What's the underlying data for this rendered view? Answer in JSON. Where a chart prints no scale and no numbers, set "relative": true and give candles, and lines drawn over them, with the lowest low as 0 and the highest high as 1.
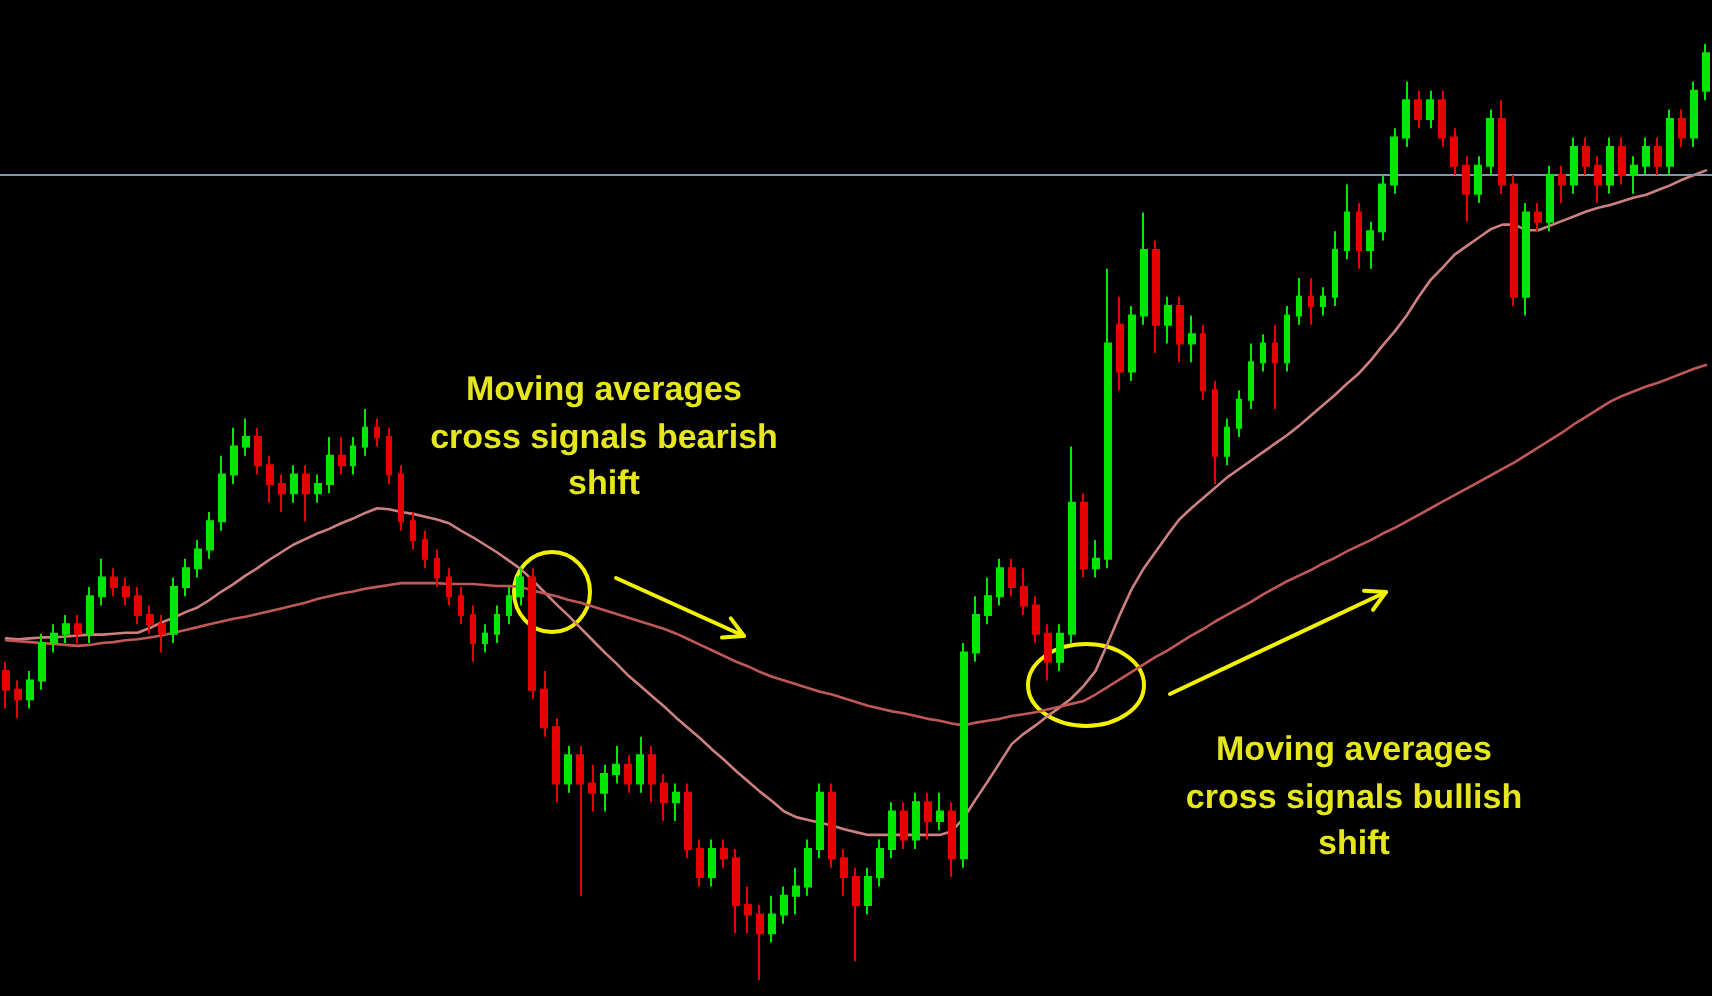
{
  "chart_data": {
    "type": "candlestick",
    "relative": true,
    "categories": [
      null,
      null,
      null,
      null,
      null,
      null,
      null,
      null,
      null,
      null,
      null,
      null,
      null,
      null,
      null,
      null,
      null,
      null,
      null,
      null,
      null,
      null,
      null,
      null,
      null,
      null,
      null,
      null,
      null,
      null,
      null,
      null,
      null,
      null,
      null,
      null,
      null,
      null,
      null,
      null,
      null,
      null,
      null,
      null,
      null,
      null,
      null,
      null,
      null,
      null,
      null,
      null,
      null,
      null,
      null,
      null,
      null,
      null,
      null,
      null,
      null,
      null,
      null,
      null,
      null,
      null,
      null,
      null,
      null,
      null,
      null,
      null,
      null,
      null,
      null,
      null,
      null,
      null,
      null,
      null,
      null,
      null,
      null,
      null,
      null,
      null,
      null,
      null,
      null,
      null,
      null,
      null,
      null,
      null,
      null,
      null,
      null,
      null,
      null,
      null,
      null,
      null,
      null,
      null,
      null,
      null,
      null,
      null,
      null,
      null,
      null,
      null,
      null,
      null,
      null,
      null,
      null,
      null,
      null,
      null,
      null,
      null,
      null,
      null,
      null,
      null,
      null,
      null,
      null,
      null,
      null,
      null,
      null,
      null,
      null,
      null,
      null,
      null,
      null,
      null,
      null,
      null,
      null
    ],
    "ohlc": [
      [
        0.33,
        0.34,
        0.29,
        0.31
      ],
      [
        0.31,
        0.32,
        0.28,
        0.3
      ],
      [
        0.3,
        0.33,
        0.29,
        0.32
      ],
      [
        0.32,
        0.37,
        0.31,
        0.36
      ],
      [
        0.36,
        0.38,
        0.35,
        0.37
      ],
      [
        0.37,
        0.39,
        0.36,
        0.38
      ],
      [
        0.38,
        0.39,
        0.36,
        0.37
      ],
      [
        0.37,
        0.42,
        0.36,
        0.41
      ],
      [
        0.41,
        0.45,
        0.4,
        0.43
      ],
      [
        0.43,
        0.44,
        0.41,
        0.42
      ],
      [
        0.42,
        0.43,
        0.4,
        0.41
      ],
      [
        0.41,
        0.42,
        0.38,
        0.39
      ],
      [
        0.39,
        0.4,
        0.37,
        0.38
      ],
      [
        0.38,
        0.39,
        0.35,
        0.37
      ],
      [
        0.37,
        0.43,
        0.36,
        0.42
      ],
      [
        0.42,
        0.45,
        0.41,
        0.44
      ],
      [
        0.44,
        0.47,
        0.43,
        0.46
      ],
      [
        0.46,
        0.5,
        0.45,
        0.49
      ],
      [
        0.49,
        0.56,
        0.48,
        0.54
      ],
      [
        0.54,
        0.59,
        0.53,
        0.57
      ],
      [
        0.57,
        0.6,
        0.56,
        0.58
      ],
      [
        0.58,
        0.59,
        0.54,
        0.55
      ],
      [
        0.55,
        0.56,
        0.51,
        0.53
      ],
      [
        0.53,
        0.54,
        0.5,
        0.52
      ],
      [
        0.52,
        0.55,
        0.51,
        0.54
      ],
      [
        0.54,
        0.55,
        0.49,
        0.52
      ],
      [
        0.52,
        0.54,
        0.51,
        0.53
      ],
      [
        0.53,
        0.58,
        0.52,
        0.56
      ],
      [
        0.56,
        0.58,
        0.54,
        0.55
      ],
      [
        0.55,
        0.58,
        0.54,
        0.57
      ],
      [
        0.57,
        0.61,
        0.56,
        0.59
      ],
      [
        0.59,
        0.6,
        0.57,
        0.58
      ],
      [
        0.58,
        0.59,
        0.53,
        0.54
      ],
      [
        0.54,
        0.55,
        0.48,
        0.49
      ],
      [
        0.49,
        0.5,
        0.46,
        0.47
      ],
      [
        0.47,
        0.48,
        0.44,
        0.45
      ],
      [
        0.45,
        0.46,
        0.42,
        0.43
      ],
      [
        0.43,
        0.44,
        0.4,
        0.41
      ],
      [
        0.41,
        0.42,
        0.38,
        0.39
      ],
      [
        0.39,
        0.4,
        0.34,
        0.36
      ],
      [
        0.36,
        0.38,
        0.35,
        0.37
      ],
      [
        0.37,
        0.4,
        0.36,
        0.39
      ],
      [
        0.39,
        0.42,
        0.38,
        0.41
      ],
      [
        0.41,
        0.44,
        0.4,
        0.43
      ],
      [
        0.43,
        0.44,
        0.3,
        0.31
      ],
      [
        0.31,
        0.33,
        0.26,
        0.27
      ],
      [
        0.27,
        0.28,
        0.19,
        0.21
      ],
      [
        0.21,
        0.25,
        0.2,
        0.24
      ],
      [
        0.24,
        0.25,
        0.09,
        0.21
      ],
      [
        0.21,
        0.23,
        0.18,
        0.2
      ],
      [
        0.2,
        0.23,
        0.18,
        0.22
      ],
      [
        0.22,
        0.25,
        0.21,
        0.23
      ],
      [
        0.23,
        0.24,
        0.2,
        0.21
      ],
      [
        0.21,
        0.26,
        0.2,
        0.24
      ],
      [
        0.24,
        0.25,
        0.19,
        0.21
      ],
      [
        0.21,
        0.22,
        0.17,
        0.19
      ],
      [
        0.19,
        0.21,
        0.17,
        0.2
      ],
      [
        0.2,
        0.21,
        0.13,
        0.14
      ],
      [
        0.14,
        0.15,
        0.1,
        0.11
      ],
      [
        0.11,
        0.15,
        0.1,
        0.14
      ],
      [
        0.14,
        0.15,
        0.12,
        0.13
      ],
      [
        0.13,
        0.14,
        0.05,
        0.08
      ],
      [
        0.08,
        0.1,
        0.05,
        0.07
      ],
      [
        0.07,
        0.08,
        0.0,
        0.05
      ],
      [
        0.05,
        0.09,
        0.04,
        0.07
      ],
      [
        0.07,
        0.1,
        0.06,
        0.09
      ],
      [
        0.09,
        0.12,
        0.07,
        0.1
      ],
      [
        0.1,
        0.15,
        0.09,
        0.14
      ],
      [
        0.14,
        0.21,
        0.13,
        0.2
      ],
      [
        0.2,
        0.21,
        0.12,
        0.13
      ],
      [
        0.13,
        0.14,
        0.09,
        0.11
      ],
      [
        0.11,
        0.12,
        0.02,
        0.08
      ],
      [
        0.08,
        0.12,
        0.07,
        0.11
      ],
      [
        0.11,
        0.15,
        0.1,
        0.14
      ],
      [
        0.14,
        0.19,
        0.13,
        0.18
      ],
      [
        0.18,
        0.19,
        0.14,
        0.15
      ],
      [
        0.15,
        0.2,
        0.14,
        0.19
      ],
      [
        0.19,
        0.2,
        0.15,
        0.17
      ],
      [
        0.17,
        0.2,
        0.16,
        0.18
      ],
      [
        0.18,
        0.19,
        0.11,
        0.13
      ],
      [
        0.13,
        0.36,
        0.12,
        0.35
      ],
      [
        0.35,
        0.41,
        0.34,
        0.39
      ],
      [
        0.39,
        0.43,
        0.38,
        0.41
      ],
      [
        0.41,
        0.45,
        0.4,
        0.44
      ],
      [
        0.44,
        0.45,
        0.41,
        0.42
      ],
      [
        0.42,
        0.44,
        0.39,
        0.4
      ],
      [
        0.4,
        0.41,
        0.36,
        0.37
      ],
      [
        0.37,
        0.38,
        0.32,
        0.34
      ],
      [
        0.34,
        0.38,
        0.33,
        0.37
      ],
      [
        0.37,
        0.57,
        0.36,
        0.51
      ],
      [
        0.51,
        0.52,
        0.43,
        0.44
      ],
      [
        0.44,
        0.47,
        0.43,
        0.45
      ],
      [
        0.45,
        0.76,
        0.44,
        0.68
      ],
      [
        0.7,
        0.73,
        0.63,
        0.65
      ],
      [
        0.65,
        0.72,
        0.64,
        0.71
      ],
      [
        0.71,
        0.82,
        0.7,
        0.78
      ],
      [
        0.78,
        0.79,
        0.67,
        0.7
      ],
      [
        0.7,
        0.73,
        0.68,
        0.72
      ],
      [
        0.72,
        0.73,
        0.66,
        0.68
      ],
      [
        0.68,
        0.71,
        0.66,
        0.69
      ],
      [
        0.69,
        0.7,
        0.62,
        0.63
      ],
      [
        0.63,
        0.64,
        0.53,
        0.56
      ],
      [
        0.56,
        0.6,
        0.55,
        0.59
      ],
      [
        0.59,
        0.63,
        0.58,
        0.62
      ],
      [
        0.62,
        0.68,
        0.61,
        0.66
      ],
      [
        0.66,
        0.69,
        0.65,
        0.68
      ],
      [
        0.68,
        0.7,
        0.61,
        0.66
      ],
      [
        0.66,
        0.72,
        0.65,
        0.71
      ],
      [
        0.71,
        0.75,
        0.7,
        0.73
      ],
      [
        0.73,
        0.75,
        0.7,
        0.72
      ],
      [
        0.72,
        0.74,
        0.71,
        0.73
      ],
      [
        0.73,
        0.8,
        0.72,
        0.78
      ],
      [
        0.78,
        0.85,
        0.77,
        0.82
      ],
      [
        0.82,
        0.83,
        0.76,
        0.78
      ],
      [
        0.78,
        0.81,
        0.76,
        0.8
      ],
      [
        0.8,
        0.86,
        0.79,
        0.85
      ],
      [
        0.85,
        0.91,
        0.84,
        0.9
      ],
      [
        0.9,
        0.96,
        0.89,
        0.94
      ],
      [
        0.94,
        0.95,
        0.91,
        0.92
      ],
      [
        0.92,
        0.95,
        0.91,
        0.94
      ],
      [
        0.94,
        0.95,
        0.89,
        0.9
      ],
      [
        0.9,
        0.91,
        0.86,
        0.87
      ],
      [
        0.87,
        0.88,
        0.81,
        0.84
      ],
      [
        0.84,
        0.88,
        0.83,
        0.87
      ],
      [
        0.87,
        0.93,
        0.86,
        0.92
      ],
      [
        0.92,
        0.94,
        0.84,
        0.85
      ],
      [
        0.85,
        0.86,
        0.72,
        0.73
      ],
      [
        0.73,
        0.83,
        0.71,
        0.82
      ],
      [
        0.82,
        0.83,
        0.8,
        0.81
      ],
      [
        0.81,
        0.87,
        0.8,
        0.86
      ],
      [
        0.86,
        0.87,
        0.83,
        0.85
      ],
      [
        0.85,
        0.9,
        0.84,
        0.89
      ],
      [
        0.89,
        0.9,
        0.86,
        0.87
      ],
      [
        0.87,
        0.88,
        0.83,
        0.85
      ],
      [
        0.85,
        0.9,
        0.84,
        0.89
      ],
      [
        0.89,
        0.9,
        0.85,
        0.86
      ],
      [
        0.86,
        0.88,
        0.84,
        0.87
      ],
      [
        0.87,
        0.9,
        0.86,
        0.89
      ],
      [
        0.89,
        0.9,
        0.86,
        0.87
      ],
      [
        0.87,
        0.93,
        0.86,
        0.92
      ],
      [
        0.92,
        0.93,
        0.89,
        0.9
      ],
      [
        0.9,
        0.96,
        0.89,
        0.95
      ],
      [
        0.95,
        1.0,
        0.94,
        0.99
      ]
    ],
    "colors": [
      "#e60000",
      "#e60000",
      "#00e600",
      "#00e600",
      "#00e600",
      "#00e600",
      "#e60000",
      "#00e600",
      "#00e600",
      "#e60000",
      "#e60000",
      "#e60000",
      "#e60000",
      "#e60000",
      "#00e600",
      "#00e600",
      "#00e600",
      "#00e600",
      "#00e600",
      "#00e600",
      "#00e600",
      "#e60000",
      "#e60000",
      "#e60000",
      "#00e600",
      "#e60000",
      "#00e600",
      "#00e600",
      "#e60000",
      "#00e600",
      "#00e600",
      "#e60000",
      "#e60000",
      "#e60000",
      "#e60000",
      "#e60000",
      "#e60000",
      "#e60000",
      "#e60000",
      "#e60000",
      "#00e600",
      "#00e600",
      "#00e600",
      "#00e600",
      "#e60000",
      "#e60000",
      "#e60000",
      "#00e600",
      "#e60000",
      "#e60000",
      "#00e600",
      "#00e600",
      "#e60000",
      "#00e600",
      "#e60000",
      "#e60000",
      "#00e600",
      "#e60000",
      "#e60000",
      "#00e600",
      "#e60000",
      "#e60000",
      "#e60000",
      "#e60000",
      "#00e600",
      "#00e600",
      "#00e600",
      "#00e600",
      "#00e600",
      "#e60000",
      "#e60000",
      "#e60000",
      "#00e600",
      "#00e600",
      "#00e600",
      "#e60000",
      "#00e600",
      "#e60000",
      "#00e600",
      "#e60000",
      "#00e600",
      "#00e600",
      "#00e600",
      "#00e600",
      "#e60000",
      "#e60000",
      "#e60000",
      "#e60000",
      "#00e600",
      "#00e600",
      "#e60000",
      "#00e600",
      "#00e600",
      "#e60000",
      "#00e600",
      "#00e600",
      "#e60000",
      "#00e600",
      "#e60000",
      "#00e600",
      "#e60000",
      "#e60000",
      "#00e600",
      "#00e600",
      "#00e600",
      "#00e600",
      "#e60000",
      "#00e600",
      "#00e600",
      "#e60000",
      "#00e600",
      "#00e600",
      "#00e600",
      "#e60000",
      "#00e600",
      "#00e600",
      "#00e600",
      "#00e600",
      "#e60000",
      "#00e600",
      "#e60000",
      "#e60000",
      "#e60000",
      "#00e600",
      "#00e600",
      "#e60000",
      "#e60000",
      "#00e600",
      "#e60000",
      "#00e600",
      "#e60000",
      "#00e600",
      "#e60000",
      "#e60000",
      "#00e600",
      "#e60000",
      "#00e600",
      "#00e600",
      "#e60000",
      "#00e600",
      "#e60000",
      "#00e600",
      "#00e600"
    ],
    "series": [
      {
        "type": "line",
        "color": "#cc8080",
        "values": [
          0.365,
          0.364,
          0.365,
          0.366,
          0.366,
          0.367,
          0.368,
          0.369,
          0.369,
          0.37,
          0.371,
          0.371,
          0.376,
          0.382,
          0.387,
          0.393,
          0.398,
          0.406,
          0.415,
          0.423,
          0.432,
          0.44,
          0.449,
          0.457,
          0.465,
          0.471,
          0.477,
          0.482,
          0.488,
          0.493,
          0.499,
          0.504,
          0.503,
          0.5,
          0.498,
          0.495,
          0.492,
          0.488,
          0.48,
          0.473,
          0.465,
          0.457,
          0.448,
          0.439,
          0.427,
          0.414,
          0.401,
          0.389,
          0.376,
          0.363,
          0.35,
          0.338,
          0.325,
          0.314,
          0.303,
          0.292,
          0.28,
          0.269,
          0.258,
          0.246,
          0.235,
          0.223,
          0.212,
          0.201,
          0.191,
          0.18,
          0.174,
          0.171,
          0.168,
          0.165,
          0.161,
          0.158,
          0.155,
          0.155,
          0.155,
          0.155,
          0.155,
          0.155,
          0.155,
          0.159,
          0.173,
          0.193,
          0.212,
          0.232,
          0.252,
          0.263,
          0.272,
          0.282,
          0.291,
          0.301,
          0.314,
          0.33,
          0.359,
          0.389,
          0.417,
          0.439,
          0.457,
          0.475,
          0.492,
          0.504,
          0.515,
          0.526,
          0.537,
          0.546,
          0.555,
          0.564,
          0.573,
          0.582,
          0.592,
          0.603,
          0.614,
          0.625,
          0.637,
          0.648,
          0.662,
          0.678,
          0.693,
          0.71,
          0.73,
          0.748,
          0.761,
          0.775,
          0.784,
          0.793,
          0.802,
          0.807,
          0.807,
          0.801,
          0.801,
          0.806,
          0.811,
          0.816,
          0.821,
          0.825,
          0.828,
          0.832,
          0.836,
          0.839,
          0.844,
          0.849,
          0.855,
          0.86,
          0.865
        ]
      },
      {
        "type": "line",
        "color": "#c05858",
        "values": [
          0.363,
          0.362,
          0.361,
          0.36,
          0.359,
          0.358,
          0.357,
          0.358,
          0.36,
          0.361,
          0.363,
          0.364,
          0.366,
          0.368,
          0.371,
          0.374,
          0.377,
          0.38,
          0.383,
          0.386,
          0.388,
          0.391,
          0.394,
          0.397,
          0.4,
          0.403,
          0.407,
          0.41,
          0.413,
          0.415,
          0.418,
          0.42,
          0.422,
          0.424,
          0.424,
          0.424,
          0.424,
          0.423,
          0.423,
          0.423,
          0.422,
          0.421,
          0.421,
          0.42,
          0.416,
          0.413,
          0.41,
          0.406,
          0.403,
          0.399,
          0.395,
          0.391,
          0.387,
          0.383,
          0.379,
          0.375,
          0.37,
          0.364,
          0.358,
          0.352,
          0.346,
          0.34,
          0.335,
          0.329,
          0.324,
          0.32,
          0.316,
          0.312,
          0.308,
          0.305,
          0.301,
          0.297,
          0.293,
          0.29,
          0.287,
          0.285,
          0.282,
          0.279,
          0.277,
          0.274,
          0.272,
          0.275,
          0.277,
          0.279,
          0.282,
          0.284,
          0.286,
          0.289,
          0.292,
          0.295,
          0.298,
          0.305,
          0.313,
          0.321,
          0.329,
          0.337,
          0.345,
          0.352,
          0.36,
          0.368,
          0.375,
          0.383,
          0.39,
          0.397,
          0.404,
          0.412,
          0.419,
          0.426,
          0.432,
          0.438,
          0.445,
          0.451,
          0.458,
          0.464,
          0.47,
          0.477,
          0.483,
          0.49,
          0.497,
          0.504,
          0.511,
          0.518,
          0.525,
          0.532,
          0.539,
          0.546,
          0.553,
          0.561,
          0.569,
          0.577,
          0.585,
          0.594,
          0.602,
          0.61,
          0.618,
          0.624,
          0.629,
          0.634,
          0.638,
          0.643,
          0.648,
          0.653,
          0.657
        ]
      }
    ],
    "ref_lines": [
      {
        "axis": "y",
        "value": 0.86,
        "color": "#8494aa"
      }
    ],
    "annotations": [
      "Moving averages\ncross signals bearish\nshift",
      "Moving averages\ncross signals bullish\nshift"
    ]
  }
}
